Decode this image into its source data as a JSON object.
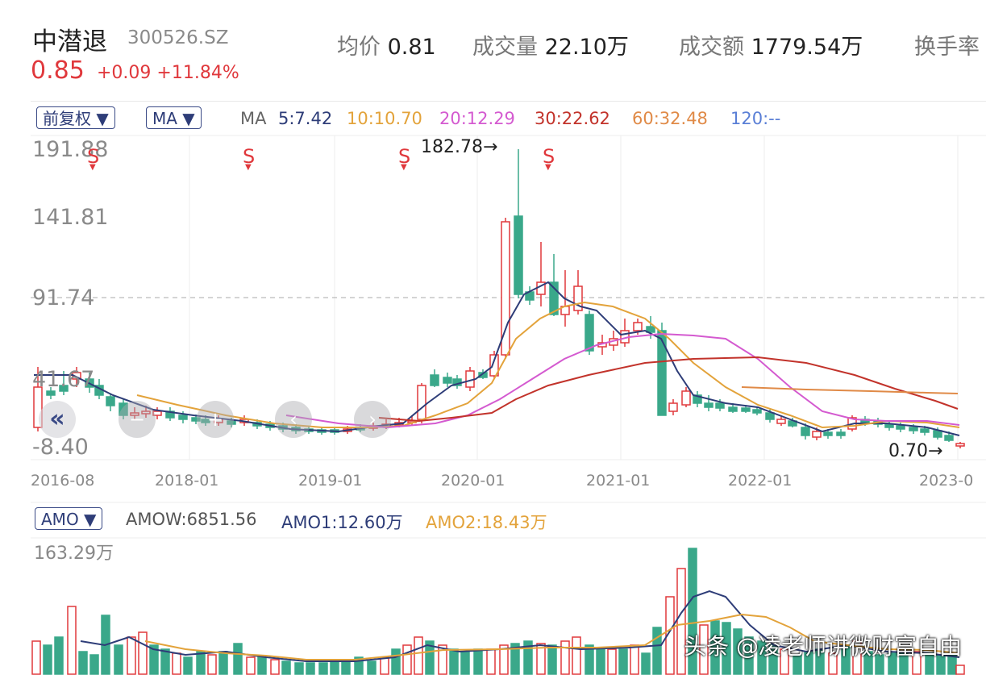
{
  "header": {
    "name": "中潜退",
    "code": "300526.SZ",
    "price": "0.85",
    "change": "+0.09",
    "change_pct": "+11.84%",
    "stats": [
      {
        "label": "均价",
        "value": "0.81"
      },
      {
        "label": "成交量",
        "value": "22.10万"
      },
      {
        "label": "成交额",
        "value": "1779.54万"
      },
      {
        "label": "换手率",
        "value": ""
      }
    ]
  },
  "toolbar": {
    "adjust_select": "前复权",
    "indicator_select": "MA",
    "ma_label": "MA",
    "ma": [
      {
        "text": "5:7.42",
        "color": "#2e3d78"
      },
      {
        "text": "10:10.70",
        "color": "#e3a33b"
      },
      {
        "text": "20:12.29",
        "color": "#d45ad0"
      },
      {
        "text": "30:22.62",
        "color": "#c2332b"
      },
      {
        "text": "60:32.48",
        "color": "#e08a47"
      },
      {
        "text": "120:--",
        "color": "#5a7fd6"
      }
    ]
  },
  "price_axis": [
    "191.88",
    "141.81",
    "91.74",
    "41.67",
    "-8.40"
  ],
  "date_axis": [
    "2016-08",
    "2018-01",
    "2019-01",
    "2020-01",
    "2021-01",
    "2022-01",
    "2023-0"
  ],
  "markers": {
    "s_label": "S",
    "high_label": "182.78→",
    "low_label": "0.70→"
  },
  "volume_panel": {
    "select": "AMO",
    "amow": "AMOW:6851.56",
    "amo1": "AMO1:12.60万",
    "amo2": "AMO2:18.43万",
    "max_label": "163.29万"
  },
  "watermark": "头条 @凌老师讲微财富自由",
  "colors": {
    "up": "#e0383c",
    "down": "#3aa88a",
    "ma5": "#2e3d78",
    "ma10": "#e3a33b",
    "ma20": "#d45ad0",
    "ma30": "#c2332b",
    "ma60": "#e08a47"
  }
}
